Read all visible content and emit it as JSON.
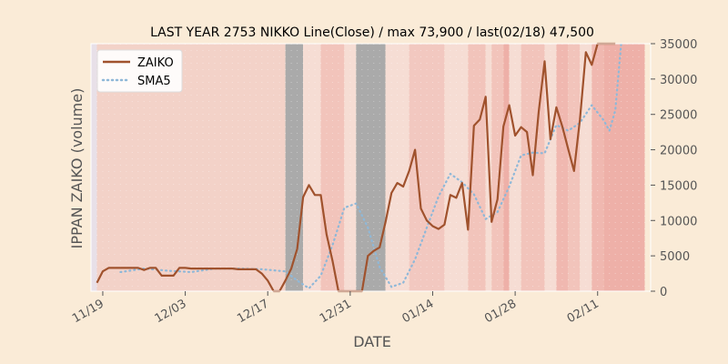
{
  "chart_data": {
    "type": "line",
    "title": "LAST YEAR 2753 NIKKO Line(Close) / max 73,900 / last(02/18) 47,500",
    "xlabel": "DATE",
    "ylabel": "IPPAN ZAIKO (volume)",
    "ylim": [
      0,
      35000
    ],
    "y_ticks": [
      0,
      5000,
      10000,
      15000,
      20000,
      25000,
      30000,
      35000
    ],
    "y_tick_labels": [
      "0",
      "5000",
      "10000",
      "15000",
      "20000",
      "25000",
      "30000",
      "35000"
    ],
    "x_range": [
      "2023-11-17",
      "2024-02-20"
    ],
    "x_ticks": [
      "2023-11-19",
      "2023-12-03",
      "2023-12-17",
      "2023-12-31",
      "2024-01-14",
      "2024-01-28",
      "2024-02-11"
    ],
    "x_tick_labels": [
      "11/19",
      "12/03",
      "12/17",
      "12/31",
      "01/14",
      "01/28",
      "02/11"
    ],
    "grid": false,
    "legend": "top-left",
    "series": [
      {
        "name": "ZAIKO",
        "color": "#a0522d",
        "style": "solid",
        "x": [
          "2023-11-18",
          "2023-11-19",
          "2023-11-20",
          "2023-11-21",
          "2023-11-22",
          "2023-11-23",
          "2023-11-24",
          "2023-11-25",
          "2023-11-26",
          "2023-11-27",
          "2023-11-28",
          "2023-11-29",
          "2023-11-30",
          "2023-12-01",
          "2023-12-02",
          "2023-12-03",
          "2023-12-04",
          "2023-12-05",
          "2023-12-06",
          "2023-12-07",
          "2023-12-08",
          "2023-12-09",
          "2023-12-10",
          "2023-12-11",
          "2023-12-12",
          "2023-12-13",
          "2023-12-14",
          "2023-12-15",
          "2023-12-16",
          "2023-12-17",
          "2023-12-18",
          "2023-12-19",
          "2023-12-20",
          "2023-12-21",
          "2023-12-22",
          "2023-12-23",
          "2023-12-24",
          "2023-12-25",
          "2023-12-26",
          "2023-12-27",
          "2023-12-28",
          "2023-12-29",
          "2023-12-30",
          "2023-12-31",
          "2024-01-01",
          "2024-01-02",
          "2024-01-03",
          "2024-01-04",
          "2024-01-05",
          "2024-01-06",
          "2024-01-07",
          "2024-01-08",
          "2024-01-09",
          "2024-01-10",
          "2024-01-11",
          "2024-01-12",
          "2024-01-13",
          "2024-01-14",
          "2024-01-15",
          "2024-01-16",
          "2024-01-17",
          "2024-01-18",
          "2024-01-19",
          "2024-01-20",
          "2024-01-21",
          "2024-01-22",
          "2024-01-23",
          "2024-01-24",
          "2024-01-25",
          "2024-01-26",
          "2024-01-27",
          "2024-01-28",
          "2024-01-29",
          "2024-01-30",
          "2024-01-31",
          "2024-02-01",
          "2024-02-02",
          "2024-02-03",
          "2024-02-04",
          "2024-02-05",
          "2024-02-06",
          "2024-02-07",
          "2024-02-08",
          "2024-02-09",
          "2024-02-10",
          "2024-02-11",
          "2024-02-12",
          "2024-02-13",
          "2024-02-14"
        ],
        "values": [
          1200,
          2800,
          3300,
          3300,
          3300,
          3300,
          3300,
          3300,
          3000,
          3300,
          3300,
          2200,
          2200,
          2200,
          3300,
          3300,
          3200,
          3200,
          3200,
          3200,
          3200,
          3200,
          3200,
          3200,
          3100,
          3100,
          3100,
          3100,
          2500,
          1500,
          0,
          0,
          1500,
          3200,
          6000,
          13300,
          15000,
          13600,
          13600,
          8000,
          4300,
          0,
          0,
          0,
          0,
          0,
          5000,
          5700,
          6200,
          9800,
          13900,
          15300,
          14800,
          17000,
          20000,
          11700,
          10000,
          9200,
          8800,
          9400,
          13600,
          13200,
          15300,
          8700,
          23400,
          24300,
          27500,
          9800,
          13000,
          23300,
          26300,
          22000,
          23200,
          22500,
          16400,
          25400,
          32500,
          21500,
          26000,
          23300,
          20100,
          17000,
          24300,
          33800,
          32000,
          36000,
          36000,
          36000,
          36000
        ]
      },
      {
        "name": "SMA5",
        "color": "#8fb8d8",
        "style": "dotted",
        "x": [
          "2023-11-22",
          "2023-11-26",
          "2023-11-30",
          "2023-12-04",
          "2023-12-08",
          "2023-12-12",
          "2023-12-16",
          "2023-12-20",
          "2023-12-22",
          "2023-12-24",
          "2023-12-26",
          "2023-12-28",
          "2023-12-30",
          "2024-01-01",
          "2024-01-03",
          "2024-01-05",
          "2024-01-07",
          "2024-01-09",
          "2024-01-11",
          "2024-01-13",
          "2024-01-15",
          "2024-01-17",
          "2024-01-19",
          "2024-01-21",
          "2024-01-23",
          "2024-01-25",
          "2024-01-27",
          "2024-01-29",
          "2024-01-31",
          "2024-02-02",
          "2024-02-04",
          "2024-02-06",
          "2024-02-08",
          "2024-02-10",
          "2024-02-12",
          "2024-02-13",
          "2024-02-14",
          "2024-02-15"
        ],
        "values": [
          2700,
          3200,
          2900,
          2700,
          3200,
          3200,
          3100,
          2800,
          1500,
          400,
          2200,
          6500,
          11800,
          12400,
          9000,
          3400,
          600,
          1200,
          4500,
          9000,
          13400,
          16600,
          15400,
          13700,
          10200,
          11200,
          14800,
          19200,
          19600,
          19500,
          23500,
          22700,
          23800,
          26300,
          24200,
          22700,
          25600,
          36000
        ]
      }
    ],
    "shaded_bands": [
      {
        "start": "2023-11-17",
        "end": "2023-11-18",
        "color": "#e8e0e8"
      },
      {
        "start": "2023-11-18",
        "end": "2023-12-20",
        "color": "#f3d2c8"
      },
      {
        "start": "2023-12-20",
        "end": "2023-12-23",
        "color": "#aaaaaa"
      },
      {
        "start": "2023-12-23",
        "end": "2023-12-26",
        "color": "#f6ddd4"
      },
      {
        "start": "2023-12-26",
        "end": "2023-12-30",
        "color": "#f2c4bb"
      },
      {
        "start": "2023-12-30",
        "end": "2024-01-01",
        "color": "#f6ddd4"
      },
      {
        "start": "2024-01-01",
        "end": "2024-01-06",
        "color": "#aaaaaa"
      },
      {
        "start": "2024-01-06",
        "end": "2024-01-10",
        "color": "#f6ddd4"
      },
      {
        "start": "2024-01-10",
        "end": "2024-01-16",
        "color": "#f2c8c0"
      },
      {
        "start": "2024-01-16",
        "end": "2024-01-20",
        "color": "#f6ddd4"
      },
      {
        "start": "2024-01-20",
        "end": "2024-01-23",
        "color": "#f2c4bb"
      },
      {
        "start": "2024-01-23",
        "end": "2024-01-24",
        "color": "#f6ddd4"
      },
      {
        "start": "2024-01-24",
        "end": "2024-01-26",
        "color": "#f2c4bb"
      },
      {
        "start": "2024-01-26",
        "end": "2024-01-27",
        "color": "#eeb0a8"
      },
      {
        "start": "2024-01-27",
        "end": "2024-01-29",
        "color": "#f6ddd4"
      },
      {
        "start": "2024-01-29",
        "end": "2024-02-02",
        "color": "#f2c4bb"
      },
      {
        "start": "2024-02-02",
        "end": "2024-02-04",
        "color": "#f6ddd4"
      },
      {
        "start": "2024-02-04",
        "end": "2024-02-06",
        "color": "#f0b8b0"
      },
      {
        "start": "2024-02-06",
        "end": "2024-02-08",
        "color": "#f2c4bb"
      },
      {
        "start": "2024-02-08",
        "end": "2024-02-10",
        "color": "#f6ddd4"
      },
      {
        "start": "2024-02-10",
        "end": "2024-02-12",
        "color": "#f0b8b0"
      },
      {
        "start": "2024-02-12",
        "end": "2024-02-19",
        "color": "#eeb0a8"
      }
    ]
  }
}
